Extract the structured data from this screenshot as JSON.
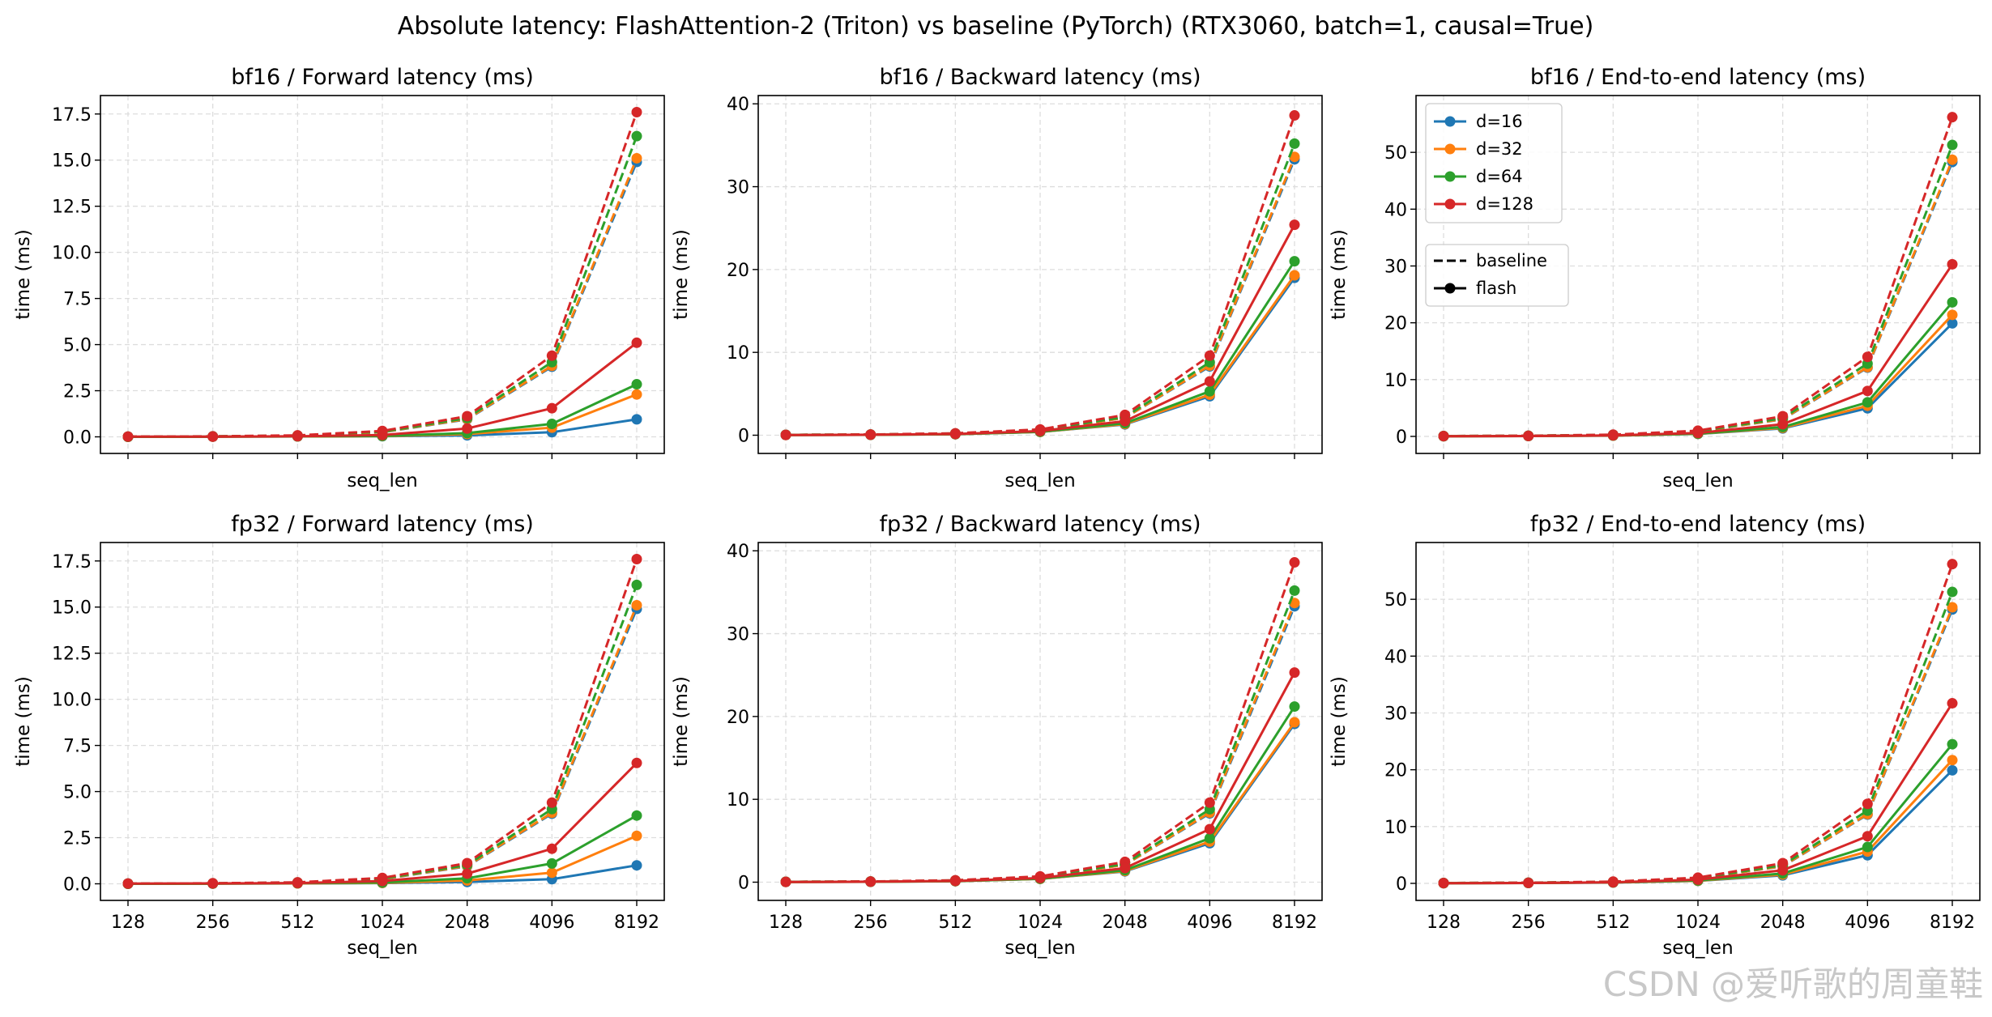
{
  "figure": {
    "suptitle": "Absolute latency: FlashAttention-2 (Triton) vs baseline (PyTorch)  (RTX3060, batch=1, causal=True)",
    "watermark": "CSDN @爱听歌的周童鞋"
  },
  "colors": {
    "d=16": "#1f77b4",
    "d=32": "#ff7f0e",
    "d=64": "#2ca02c",
    "d=128": "#d62728",
    "grid": "#dddddd"
  },
  "legend": {
    "placement": "upper-left of bf16 end-to-end panel",
    "dims": [
      "d=16",
      "d=32",
      "d=64",
      "d=128"
    ],
    "styles": [
      {
        "label": "baseline",
        "dash": true
      },
      {
        "label": "flash",
        "dash": false
      }
    ]
  },
  "chart_data": [
    {
      "type": "line",
      "title": "bf16 / Forward latency (ms)",
      "xlabel": "seq_len",
      "ylabel": "time (ms)",
      "x": [
        "128",
        "256",
        "512",
        "1024",
        "2048",
        "4096",
        "8192"
      ],
      "ylim": [
        -0.9,
        18.5
      ],
      "yticks": [
        0.0,
        2.5,
        5.0,
        7.5,
        10.0,
        12.5,
        15.0,
        17.5
      ],
      "ytick_labels": [
        "0.0",
        "2.5",
        "5.0",
        "7.5",
        "10.0",
        "12.5",
        "15.0",
        "17.5"
      ],
      "show_xtick_labels": false,
      "grid": true,
      "series": [
        {
          "name": "d=16",
          "kind": "baseline",
          "values": [
            0.01,
            0.02,
            0.06,
            0.25,
            0.95,
            3.8,
            14.9
          ]
        },
        {
          "name": "d=32",
          "kind": "baseline",
          "values": [
            0.01,
            0.02,
            0.06,
            0.26,
            0.97,
            3.85,
            15.1
          ]
        },
        {
          "name": "d=64",
          "kind": "baseline",
          "values": [
            0.01,
            0.02,
            0.07,
            0.28,
            1.02,
            4.05,
            16.3
          ]
        },
        {
          "name": "d=128",
          "kind": "baseline",
          "values": [
            0.01,
            0.03,
            0.08,
            0.32,
            1.12,
            4.4,
            17.6
          ]
        },
        {
          "name": "d=16",
          "kind": "flash",
          "values": [
            0.0,
            0.01,
            0.02,
            0.03,
            0.08,
            0.25,
            0.95
          ]
        },
        {
          "name": "d=32",
          "kind": "flash",
          "values": [
            0.0,
            0.01,
            0.02,
            0.04,
            0.15,
            0.5,
            2.3
          ]
        },
        {
          "name": "d=64",
          "kind": "flash",
          "values": [
            0.0,
            0.01,
            0.02,
            0.05,
            0.2,
            0.7,
            2.85
          ]
        },
        {
          "name": "d=128",
          "kind": "flash",
          "values": [
            0.01,
            0.01,
            0.03,
            0.1,
            0.45,
            1.55,
            5.1
          ]
        }
      ]
    },
    {
      "type": "line",
      "title": "bf16 / Backward latency (ms)",
      "xlabel": "seq_len",
      "ylabel": "time (ms)",
      "x": [
        "128",
        "256",
        "512",
        "1024",
        "2048",
        "4096",
        "8192"
      ],
      "ylim": [
        -2.2,
        41
      ],
      "yticks": [
        0,
        10,
        20,
        30,
        40
      ],
      "ytick_labels": [
        "0",
        "10",
        "20",
        "30",
        "40"
      ],
      "show_xtick_labels": false,
      "grid": true,
      "series": [
        {
          "name": "d=16",
          "kind": "baseline",
          "values": [
            0.05,
            0.08,
            0.2,
            0.6,
            2.1,
            8.3,
            33.3
          ]
        },
        {
          "name": "d=32",
          "kind": "baseline",
          "values": [
            0.05,
            0.08,
            0.2,
            0.6,
            2.1,
            8.4,
            33.6
          ]
        },
        {
          "name": "d=64",
          "kind": "baseline",
          "values": [
            0.05,
            0.08,
            0.21,
            0.63,
            2.2,
            8.8,
            35.2
          ]
        },
        {
          "name": "d=128",
          "kind": "baseline",
          "values": [
            0.05,
            0.09,
            0.23,
            0.7,
            2.45,
            9.6,
            38.6
          ]
        },
        {
          "name": "d=16",
          "kind": "flash",
          "values": [
            0.03,
            0.05,
            0.12,
            0.4,
            1.3,
            4.7,
            19.0
          ]
        },
        {
          "name": "d=32",
          "kind": "flash",
          "values": [
            0.03,
            0.05,
            0.12,
            0.4,
            1.35,
            4.9,
            19.3
          ]
        },
        {
          "name": "d=64",
          "kind": "flash",
          "values": [
            0.03,
            0.05,
            0.13,
            0.42,
            1.45,
            5.3,
            21.0
          ]
        },
        {
          "name": "d=128",
          "kind": "flash",
          "values": [
            0.03,
            0.06,
            0.15,
            0.5,
            1.7,
            6.5,
            25.4
          ]
        }
      ]
    },
    {
      "type": "line",
      "title": "bf16 / End-to-end latency (ms)",
      "xlabel": "seq_len",
      "ylabel": "time (ms)",
      "x": [
        "128",
        "256",
        "512",
        "1024",
        "2048",
        "4096",
        "8192"
      ],
      "ylim": [
        -3,
        60
      ],
      "yticks": [
        0,
        10,
        20,
        30,
        40,
        50
      ],
      "ytick_labels": [
        "0",
        "10",
        "20",
        "30",
        "40",
        "50"
      ],
      "show_xtick_labels": false,
      "grid": true,
      "series": [
        {
          "name": "d=16",
          "kind": "baseline",
          "values": [
            0.06,
            0.1,
            0.27,
            0.85,
            3.0,
            12.1,
            48.3
          ]
        },
        {
          "name": "d=32",
          "kind": "baseline",
          "values": [
            0.06,
            0.1,
            0.27,
            0.86,
            3.05,
            12.2,
            48.7
          ]
        },
        {
          "name": "d=64",
          "kind": "baseline",
          "values": [
            0.06,
            0.11,
            0.28,
            0.9,
            3.2,
            12.8,
            51.3
          ]
        },
        {
          "name": "d=128",
          "kind": "baseline",
          "values": [
            0.07,
            0.12,
            0.31,
            1.0,
            3.55,
            14.0,
            56.2
          ]
        },
        {
          "name": "d=16",
          "kind": "flash",
          "values": [
            0.03,
            0.06,
            0.14,
            0.43,
            1.4,
            4.95,
            19.9
          ]
        },
        {
          "name": "d=32",
          "kind": "flash",
          "values": [
            0.03,
            0.06,
            0.14,
            0.45,
            1.5,
            5.4,
            21.4
          ]
        },
        {
          "name": "d=64",
          "kind": "flash",
          "values": [
            0.03,
            0.06,
            0.15,
            0.48,
            1.65,
            6.0,
            23.6
          ]
        },
        {
          "name": "d=128",
          "kind": "flash",
          "values": [
            0.04,
            0.07,
            0.18,
            0.6,
            2.15,
            8.0,
            30.3
          ]
        }
      ]
    },
    {
      "type": "line",
      "title": "fp32 / Forward latency (ms)",
      "xlabel": "seq_len",
      "ylabel": "time (ms)",
      "x": [
        "128",
        "256",
        "512",
        "1024",
        "2048",
        "4096",
        "8192"
      ],
      "ylim": [
        -0.9,
        18.5
      ],
      "yticks": [
        0.0,
        2.5,
        5.0,
        7.5,
        10.0,
        12.5,
        15.0,
        17.5
      ],
      "ytick_labels": [
        "0.0",
        "2.5",
        "5.0",
        "7.5",
        "10.0",
        "12.5",
        "15.0",
        "17.5"
      ],
      "show_xtick_labels": true,
      "grid": true,
      "series": [
        {
          "name": "d=16",
          "kind": "baseline",
          "values": [
            0.01,
            0.02,
            0.06,
            0.25,
            0.95,
            3.8,
            14.9
          ]
        },
        {
          "name": "d=32",
          "kind": "baseline",
          "values": [
            0.01,
            0.02,
            0.06,
            0.26,
            0.97,
            3.85,
            15.1
          ]
        },
        {
          "name": "d=64",
          "kind": "baseline",
          "values": [
            0.01,
            0.02,
            0.07,
            0.28,
            1.02,
            4.05,
            16.2
          ]
        },
        {
          "name": "d=128",
          "kind": "baseline",
          "values": [
            0.01,
            0.03,
            0.08,
            0.32,
            1.12,
            4.4,
            17.6
          ]
        },
        {
          "name": "d=16",
          "kind": "flash",
          "values": [
            0.0,
            0.01,
            0.02,
            0.04,
            0.1,
            0.25,
            1.0
          ]
        },
        {
          "name": "d=32",
          "kind": "flash",
          "values": [
            0.0,
            0.01,
            0.02,
            0.05,
            0.18,
            0.6,
            2.6
          ]
        },
        {
          "name": "d=64",
          "kind": "flash",
          "values": [
            0.0,
            0.01,
            0.03,
            0.07,
            0.3,
            1.1,
            3.7
          ]
        },
        {
          "name": "d=128",
          "kind": "flash",
          "values": [
            0.01,
            0.02,
            0.04,
            0.15,
            0.55,
            1.9,
            6.55
          ]
        }
      ]
    },
    {
      "type": "line",
      "title": "fp32 / Backward latency (ms)",
      "xlabel": "seq_len",
      "ylabel": "time (ms)",
      "x": [
        "128",
        "256",
        "512",
        "1024",
        "2048",
        "4096",
        "8192"
      ],
      "ylim": [
        -2.2,
        41
      ],
      "yticks": [
        0,
        10,
        20,
        30,
        40
      ],
      "ytick_labels": [
        "0",
        "10",
        "20",
        "30",
        "40"
      ],
      "show_xtick_labels": true,
      "grid": true,
      "series": [
        {
          "name": "d=16",
          "kind": "baseline",
          "values": [
            0.05,
            0.08,
            0.2,
            0.6,
            2.1,
            8.3,
            33.3
          ]
        },
        {
          "name": "d=32",
          "kind": "baseline",
          "values": [
            0.05,
            0.08,
            0.2,
            0.6,
            2.1,
            8.4,
            33.7
          ]
        },
        {
          "name": "d=64",
          "kind": "baseline",
          "values": [
            0.05,
            0.08,
            0.21,
            0.63,
            2.2,
            8.8,
            35.2
          ]
        },
        {
          "name": "d=128",
          "kind": "baseline",
          "values": [
            0.05,
            0.09,
            0.23,
            0.7,
            2.45,
            9.6,
            38.6
          ]
        },
        {
          "name": "d=16",
          "kind": "flash",
          "values": [
            0.03,
            0.05,
            0.12,
            0.4,
            1.3,
            4.7,
            19.1
          ]
        },
        {
          "name": "d=32",
          "kind": "flash",
          "values": [
            0.03,
            0.05,
            0.12,
            0.4,
            1.35,
            4.9,
            19.3
          ]
        },
        {
          "name": "d=64",
          "kind": "flash",
          "values": [
            0.03,
            0.05,
            0.13,
            0.42,
            1.45,
            5.3,
            21.2
          ]
        },
        {
          "name": "d=128",
          "kind": "flash",
          "values": [
            0.03,
            0.06,
            0.15,
            0.5,
            1.7,
            6.4,
            25.3
          ]
        }
      ]
    },
    {
      "type": "line",
      "title": "fp32 / End-to-end latency (ms)",
      "xlabel": "seq_len",
      "ylabel": "time (ms)",
      "x": [
        "128",
        "256",
        "512",
        "1024",
        "2048",
        "4096",
        "8192"
      ],
      "ylim": [
        -3,
        60
      ],
      "yticks": [
        0,
        10,
        20,
        30,
        40,
        50
      ],
      "ytick_labels": [
        "0",
        "10",
        "20",
        "30",
        "40",
        "50"
      ],
      "show_xtick_labels": true,
      "grid": true,
      "series": [
        {
          "name": "d=16",
          "kind": "baseline",
          "values": [
            0.06,
            0.1,
            0.27,
            0.85,
            3.0,
            12.1,
            48.2
          ]
        },
        {
          "name": "d=32",
          "kind": "baseline",
          "values": [
            0.06,
            0.1,
            0.27,
            0.86,
            3.05,
            12.2,
            48.6
          ]
        },
        {
          "name": "d=64",
          "kind": "baseline",
          "values": [
            0.06,
            0.11,
            0.28,
            0.9,
            3.2,
            12.8,
            51.3
          ]
        },
        {
          "name": "d=128",
          "kind": "baseline",
          "values": [
            0.07,
            0.12,
            0.31,
            1.0,
            3.55,
            14.0,
            56.2
          ]
        },
        {
          "name": "d=16",
          "kind": "flash",
          "values": [
            0.03,
            0.06,
            0.14,
            0.43,
            1.4,
            4.95,
            19.9
          ]
        },
        {
          "name": "d=32",
          "kind": "flash",
          "values": [
            0.03,
            0.06,
            0.15,
            0.46,
            1.55,
            5.6,
            21.7
          ]
        },
        {
          "name": "d=64",
          "kind": "flash",
          "values": [
            0.03,
            0.06,
            0.16,
            0.5,
            1.75,
            6.4,
            24.5
          ]
        },
        {
          "name": "d=128",
          "kind": "flash",
          "values": [
            0.04,
            0.07,
            0.19,
            0.65,
            2.3,
            8.3,
            31.7
          ]
        }
      ]
    }
  ]
}
